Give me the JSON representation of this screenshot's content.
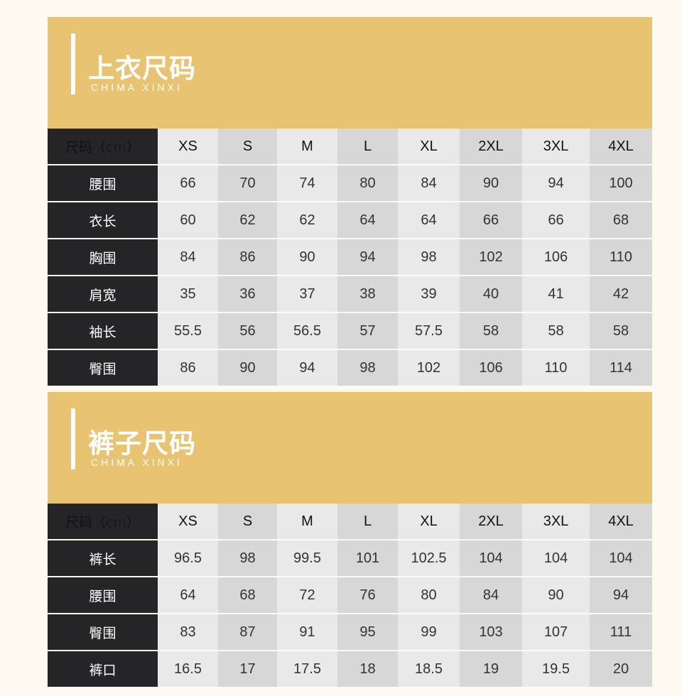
{
  "colors": {
    "banner": "#e7c372",
    "label_bg": "#252527",
    "cell_light": "#e9e9e9",
    "cell_dark": "#d7d7d7"
  },
  "sections": [
    {
      "title": "上衣尺码",
      "subtitle": "CHIMA XINXI",
      "header_label": "尺码（cm）",
      "sizes": [
        "XS",
        "S",
        "M",
        "L",
        "XL",
        "2XL",
        "3XL",
        "4XL"
      ],
      "rows": [
        {
          "label": "腰围",
          "values": [
            "66",
            "70",
            "74",
            "80",
            "84",
            "90",
            "94",
            "100"
          ]
        },
        {
          "label": "衣长",
          "values": [
            "60",
            "62",
            "62",
            "64",
            "64",
            "66",
            "66",
            "68"
          ]
        },
        {
          "label": "胸围",
          "values": [
            "84",
            "86",
            "90",
            "94",
            "98",
            "102",
            "106",
            "110"
          ]
        },
        {
          "label": "肩宽",
          "values": [
            "35",
            "36",
            "37",
            "38",
            "39",
            "40",
            "41",
            "42"
          ]
        },
        {
          "label": "袖长",
          "values": [
            "55.5",
            "56",
            "56.5",
            "57",
            "57.5",
            "58",
            "58",
            "58"
          ]
        },
        {
          "label": "臀围",
          "values": [
            "86",
            "90",
            "94",
            "98",
            "102",
            "106",
            "110",
            "114"
          ]
        }
      ]
    },
    {
      "title": "裤子尺码",
      "subtitle": "CHIMA XINXI",
      "header_label": "尺码（cm）",
      "sizes": [
        "XS",
        "S",
        "M",
        "L",
        "XL",
        "2XL",
        "3XL",
        "4XL"
      ],
      "rows": [
        {
          "label": "裤长",
          "values": [
            "96.5",
            "98",
            "99.5",
            "101",
            "102.5",
            "104",
            "104",
            "104"
          ]
        },
        {
          "label": "腰围",
          "values": [
            "64",
            "68",
            "72",
            "76",
            "80",
            "84",
            "90",
            "94"
          ]
        },
        {
          "label": "臀围",
          "values": [
            "83",
            "87",
            "91",
            "95",
            "99",
            "103",
            "107",
            "111"
          ]
        },
        {
          "label": "裤口",
          "values": [
            "16.5",
            "17",
            "17.5",
            "18",
            "18.5",
            "19",
            "19.5",
            "20"
          ]
        }
      ]
    }
  ]
}
